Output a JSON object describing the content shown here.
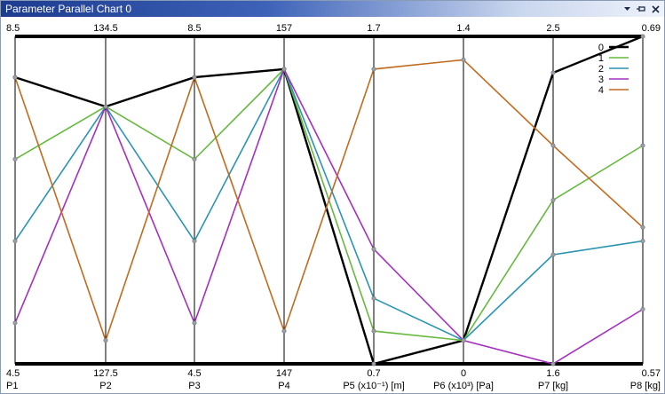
{
  "window": {
    "title": "Parameter Parallel Chart 0",
    "controls": [
      "chevron-down-icon",
      "pin-icon",
      "close-icon"
    ]
  },
  "chart_data": {
    "type": "parallel_coordinates",
    "axes": [
      {
        "label": "P1",
        "min": 4.5,
        "max": 8.5,
        "min_label": "4.5",
        "max_label": "8.5"
      },
      {
        "label": "P2",
        "min": 127.5,
        "max": 134.5,
        "min_label": "127.5",
        "max_label": "134.5"
      },
      {
        "label": "P3",
        "min": 4.5,
        "max": 8.5,
        "min_label": "4.5",
        "max_label": "8.5"
      },
      {
        "label": "P4",
        "min": 147,
        "max": 157,
        "min_label": "147",
        "max_label": "157"
      },
      {
        "label": "P5 (x10⁻¹) [m]",
        "min": 0.7,
        "max": 1.7,
        "min_label": "0.7",
        "max_label": "1.7"
      },
      {
        "label": "P6 (x10³) [Pa]",
        "min": 0,
        "max": 1.4,
        "min_label": "0",
        "max_label": "1.4"
      },
      {
        "label": "P7 [kg]",
        "min": 1.6,
        "max": 2.5,
        "min_label": "1.6",
        "max_label": "2.5"
      },
      {
        "label": "P8 [kg]",
        "min": 0.57,
        "max": 0.69,
        "min_label": "0.57",
        "max_label": "0.69"
      }
    ],
    "series": [
      {
        "name": "0",
        "color": "#000000",
        "values": [
          8.0,
          133.0,
          8.0,
          156.0,
          0.7,
          0.1,
          2.4,
          0.69
        ]
      },
      {
        "name": "1",
        "color": "#67b93e",
        "values": [
          7.0,
          133.0,
          7.0,
          156.0,
          0.8,
          0.1,
          2.05,
          0.65
        ]
      },
      {
        "name": "2",
        "color": "#2b94b3",
        "values": [
          6.0,
          133.0,
          6.0,
          156.0,
          0.9,
          0.1,
          1.9,
          0.615
        ]
      },
      {
        "name": "3",
        "color": "#a530bf",
        "values": [
          5.0,
          133.0,
          5.0,
          156.0,
          1.05,
          0.1,
          1.6,
          0.59
        ]
      },
      {
        "name": "4",
        "color": "#c26a1e",
        "values": [
          8.0,
          128.0,
          8.0,
          148.0,
          1.6,
          1.3,
          2.2,
          0.62
        ]
      }
    ],
    "legend_position": "top-right"
  }
}
